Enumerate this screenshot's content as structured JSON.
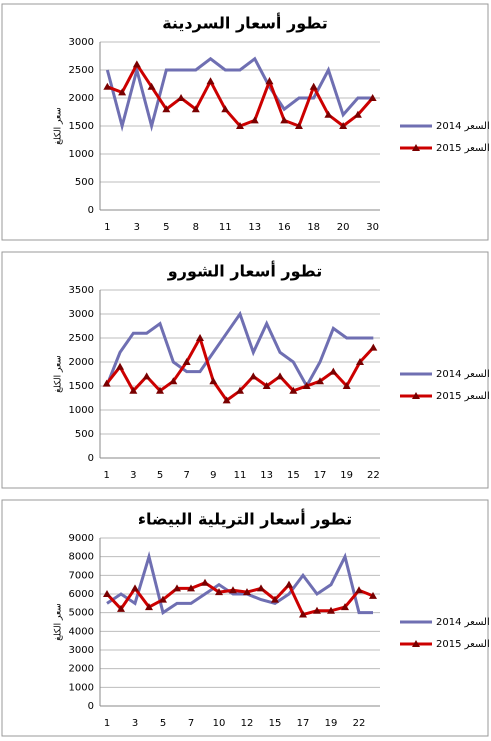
{
  "chart_data": [
    {
      "type": "line",
      "title": "تطور أسعار السردينة",
      "y_label": "سعر الكلغ",
      "categories": [
        "1",
        null,
        "3",
        null,
        "5",
        null,
        "8",
        null,
        "11",
        null,
        "13",
        null,
        "16",
        null,
        "18",
        null,
        "20",
        null,
        "30"
      ],
      "series": [
        {
          "name": "السعر 2014",
          "color": "#6f6fb2",
          "marker": "none",
          "values": [
            2500,
            1500,
            2500,
            1500,
            2500,
            2500,
            2500,
            2700,
            2500,
            2500,
            2700,
            2200,
            1800,
            2000,
            2000,
            2500,
            1700,
            2000,
            2000
          ]
        },
        {
          "name": "السعر 2015",
          "color": "#cc0000",
          "marker": "triangle",
          "values": [
            2200,
            2100,
            2600,
            2200,
            1800,
            2000,
            1800,
            2300,
            1800,
            1500,
            1600,
            2300,
            1600,
            1500,
            2200,
            1700,
            1500,
            1700,
            2000
          ]
        }
      ],
      "ylim": [
        0,
        3000
      ],
      "yticks": [
        0,
        500,
        1000,
        1500,
        2000,
        2500,
        3000
      ],
      "grid": true
    },
    {
      "type": "line",
      "title": "تطور أسعار الشورو",
      "y_label": "سعر الكلغ",
      "categories": [
        "1",
        null,
        "3",
        null,
        "5",
        null,
        "7",
        null,
        "9",
        null,
        "11",
        null,
        "13",
        null,
        "15",
        null,
        "17",
        null,
        "19",
        null,
        "22"
      ],
      "series": [
        {
          "name": "السعر 2014",
          "color": "#6f6fb2",
          "marker": "none",
          "values": [
            1500,
            2200,
            2600,
            2600,
            2800,
            2000,
            1800,
            1800,
            2200,
            2600,
            3000,
            2200,
            2800,
            2200,
            2000,
            1500,
            2000,
            2700,
            2500,
            2500,
            2500
          ]
        },
        {
          "name": "السعر 2015",
          "color": "#cc0000",
          "marker": "triangle",
          "values": [
            1550,
            1900,
            1400,
            1700,
            1400,
            1600,
            2000,
            2500,
            1600,
            1200,
            1400,
            1700,
            1500,
            1700,
            1400,
            1500,
            1600,
            1800,
            1500,
            2000,
            2300
          ]
        }
      ],
      "ylim": [
        0,
        3500
      ],
      "yticks": [
        0,
        500,
        1000,
        1500,
        2000,
        2500,
        3000,
        3500
      ],
      "grid": true
    },
    {
      "type": "line",
      "title": "تطور أسعار التريلية البيضاء",
      "y_label": "سعر الكلغ",
      "categories": [
        "1",
        null,
        "3",
        null,
        "5",
        null,
        "7",
        null,
        "10",
        null,
        "12",
        null,
        "15",
        null,
        "17",
        null,
        "19",
        null,
        "22",
        null
      ],
      "series": [
        {
          "name": "السعر 2014",
          "color": "#6f6fb2",
          "marker": "none",
          "values": [
            5500,
            6000,
            5500,
            8000,
            5000,
            5500,
            5500,
            6000,
            6500,
            6000,
            6000,
            5700,
            5500,
            6000,
            7000,
            6000,
            6500,
            8000,
            5000,
            5000
          ]
        },
        {
          "name": "السعر 2015",
          "color": "#cc0000",
          "marker": "triangle",
          "values": [
            6000,
            5200,
            6300,
            5300,
            5700,
            6300,
            6300,
            6600,
            6100,
            6200,
            6100,
            6300,
            5700,
            6500,
            4900,
            5100,
            5100,
            5300,
            6200,
            5900
          ]
        }
      ],
      "ylim": [
        0,
        9000
      ],
      "yticks": [
        0,
        1000,
        2000,
        3000,
        4000,
        5000,
        6000,
        7000,
        8000,
        9000
      ],
      "grid": true
    }
  ]
}
